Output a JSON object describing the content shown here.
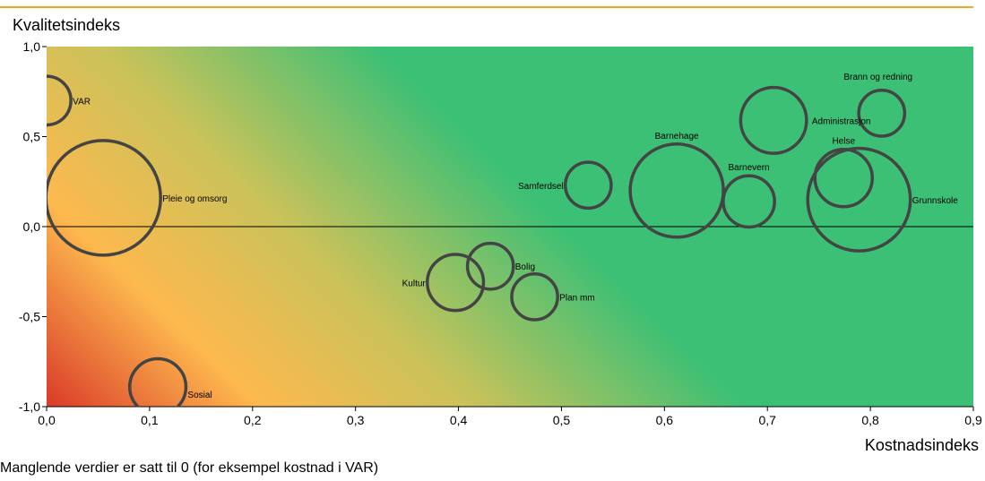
{
  "chart_data": {
    "type": "scatter",
    "title": "",
    "xlabel": "Kostnadsindeks",
    "ylabel": "Kvalitetsindeks",
    "xlim": [
      0,
      0.9
    ],
    "ylim": [
      -1,
      1
    ],
    "x_ticks": [
      0,
      0.1,
      0.2,
      0.3,
      0.4,
      0.5,
      0.6,
      0.7,
      0.8,
      0.9
    ],
    "y_ticks": [
      -1,
      -0.5,
      0,
      0.5,
      1
    ],
    "x_tick_labels": [
      "0,0",
      "0,1",
      "0,2",
      "0,3",
      "0,4",
      "0,5",
      "0,6",
      "0,7",
      "0,8",
      "0,9"
    ],
    "y_tick_labels": [
      "-1,0",
      "-0,5",
      "0,0",
      "0,5",
      "1,0"
    ],
    "grid": false,
    "legend": "none",
    "background": "gradient from red (low cost, low quality) through orange and yellow to green",
    "colors": {
      "accent_line": "#f5a623",
      "bubble_stroke": "#444444",
      "gradient_red": "#d73027",
      "gradient_orange": "#fdb94e",
      "gradient_yellow": "#c9c25a",
      "gradient_green": "#3cc075"
    },
    "series": [
      {
        "points": [
          {
            "label": "VAR",
            "x": 0.0,
            "y": 0.7,
            "size": 0.18
          },
          {
            "label": "Pleie og omsorg",
            "x": 0.055,
            "y": 0.16,
            "size": 1.0
          },
          {
            "label": "Sosial",
            "x": 0.108,
            "y": -0.89,
            "size": 0.24
          },
          {
            "label": "Kultur",
            "x": 0.397,
            "y": -0.31,
            "size": 0.24
          },
          {
            "label": "Bolig",
            "x": 0.431,
            "y": -0.22,
            "size": 0.16
          },
          {
            "label": "Plan mm",
            "x": 0.474,
            "y": -0.39,
            "size": 0.16
          },
          {
            "label": "Samferdsel",
            "x": 0.526,
            "y": 0.23,
            "size": 0.16
          },
          {
            "label": "Barnehage",
            "x": 0.612,
            "y": 0.2,
            "size": 0.66
          },
          {
            "label": "Barnevern",
            "x": 0.682,
            "y": 0.14,
            "size": 0.2
          },
          {
            "label": "Administrasjon",
            "x": 0.706,
            "y": 0.59,
            "size": 0.33
          },
          {
            "label": "Helse",
            "x": 0.774,
            "y": 0.27,
            "size": 0.25
          },
          {
            "label": "Grunnskole",
            "x": 0.789,
            "y": 0.15,
            "size": 0.8
          },
          {
            "label": "Brann og redning",
            "x": 0.811,
            "y": 0.63,
            "size": 0.16
          }
        ]
      }
    ]
  },
  "footnote": "Manglende verdier er satt til 0 (for eksempel kostnad i VAR)"
}
